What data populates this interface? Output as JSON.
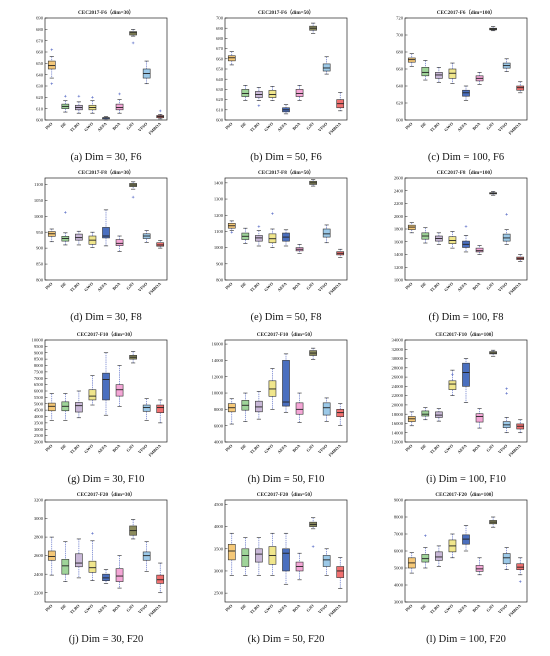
{
  "figure": {
    "series_labels": [
      "PSO",
      "DE",
      "TLBO",
      "GWO",
      "AEFA",
      "BOA",
      "GJO",
      "VFSO",
      "FMBOA"
    ],
    "series_colors": [
      "#f5c878",
      "#9fd49a",
      "#c9b8d8",
      "#f0e68c",
      "#4a6fbf",
      "#f4a6d6",
      "#8c8c5e",
      "#9cc9e8",
      "#f07070"
    ]
  },
  "chart_data": [
    {
      "type": "box",
      "title": "CEC2017-F6（dim=30）",
      "caption": "(a) Dim = 30, F6",
      "yticks": [
        "600",
        "610",
        "620",
        "630",
        "640",
        "650",
        "660",
        "670",
        "680",
        "690"
      ],
      "ylim": [
        600,
        690
      ],
      "boxes": [
        [
          637,
          645,
          648,
          652,
          656
        ],
        [
          607,
          610,
          612,
          614,
          617
        ],
        [
          606,
          609,
          611,
          613,
          616
        ],
        [
          606,
          609,
          611,
          613,
          617
        ],
        [
          600,
          601,
          602,
          602,
          603
        ],
        [
          606,
          609,
          611,
          614,
          618
        ],
        [
          674,
          675,
          677,
          678,
          680
        ],
        [
          632,
          637,
          641,
          645,
          652
        ],
        [
          601,
          602,
          603,
          604,
          605
        ]
      ],
      "outliers": [
        [
          662,
          632
        ],
        [
          621
        ],
        [
          621
        ],
        [
          620
        ],
        [],
        [
          623
        ],
        [
          668
        ],
        [],
        [
          608
        ]
      ]
    },
    {
      "type": "box",
      "title": "CEC2017-F6（dim=50）",
      "caption": "(b) Dim = 50, F6",
      "yticks": [
        "600",
        "610",
        "620",
        "630",
        "640",
        "650",
        "660",
        "670",
        "680",
        "690",
        "700"
      ],
      "ylim": [
        600,
        700
      ],
      "boxes": [
        [
          654,
          658,
          661,
          663,
          667
        ],
        [
          619,
          623,
          626,
          630,
          634
        ],
        [
          619,
          622,
          625,
          628,
          632
        ],
        [
          619,
          622,
          625,
          629,
          633
        ],
        [
          606,
          608,
          610,
          612,
          615
        ],
        [
          619,
          623,
          626,
          630,
          634
        ],
        [
          685,
          688,
          690,
          692,
          695
        ],
        [
          645,
          648,
          651,
          655,
          662
        ],
        [
          609,
          612,
          616,
          620,
          627
        ]
      ],
      "outliers": [
        [],
        [],
        [
          614
        ],
        [],
        [],
        [],
        [],
        [],
        []
      ]
    },
    {
      "type": "box",
      "title": "CEC2017-F6（dim=100）",
      "caption": "(c) Dim = 100, F6",
      "yticks": [
        "600",
        "620",
        "640",
        "660",
        "680",
        "700",
        "720"
      ],
      "ylim": [
        600,
        720
      ],
      "boxes": [
        [
          663,
          668,
          671,
          673,
          678
        ],
        [
          647,
          652,
          656,
          662,
          670
        ],
        [
          644,
          649,
          653,
          656,
          662
        ],
        [
          643,
          649,
          655,
          660,
          667
        ],
        [
          623,
          628,
          632,
          635,
          640
        ],
        [
          642,
          646,
          649,
          652,
          656
        ],
        [
          705,
          706,
          707,
          708,
          710
        ],
        [
          657,
          661,
          664,
          667,
          672
        ],
        [
          632,
          635,
          638,
          640,
          645
        ]
      ],
      "outliers": [
        [],
        [],
        [],
        [],
        [],
        [],
        [],
        [],
        []
      ]
    },
    {
      "type": "box",
      "title": "CEC2017-F8（dim=30）",
      "caption": "(d) Dim = 30, F8",
      "yticks": [
        "800",
        "850",
        "900",
        "950",
        "1000",
        "1050",
        "1100"
      ],
      "ylim": [
        800,
        1120
      ],
      "boxes": [
        [
          920,
          937,
          945,
          952,
          960
        ],
        [
          910,
          922,
          930,
          937,
          948
        ],
        [
          910,
          925,
          933,
          944,
          953
        ],
        [
          902,
          912,
          925,
          938,
          950
        ],
        [
          907,
          932,
          938,
          965,
          1020
        ],
        [
          890,
          908,
          915,
          927,
          938
        ],
        [
          1085,
          1093,
          1098,
          1103,
          1108
        ],
        [
          918,
          930,
          938,
          945,
          955
        ],
        [
          900,
          906,
          910,
          917,
          924
        ]
      ],
      "outliers": [
        [],
        [
          1012
        ],
        [],
        [],
        [],
        [],
        [
          1060
        ],
        [],
        []
      ]
    },
    {
      "type": "box",
      "title": "CEC2017-F8（dim=50）",
      "caption": "(e) Dim = 50, F8",
      "yticks": [
        "800",
        "900",
        "1000",
        "1100",
        "1200",
        "1300",
        "1400"
      ],
      "ylim": [
        800,
        1430
      ],
      "boxes": [
        [
          1105,
          1120,
          1135,
          1150,
          1165
        ],
        [
          1025,
          1050,
          1070,
          1090,
          1120
        ],
        [
          1010,
          1040,
          1060,
          1075,
          1105
        ],
        [
          1000,
          1030,
          1055,
          1085,
          1115
        ],
        [
          1010,
          1040,
          1065,
          1090,
          1110
        ],
        [
          965,
          980,
          990,
          1000,
          1020
        ],
        [
          1380,
          1390,
          1400,
          1410,
          1420
        ],
        [
          1030,
          1065,
          1085,
          1115,
          1140
        ],
        [
          940,
          955,
          965,
          975,
          990
        ]
      ],
      "outliers": [
        [
          1095
        ],
        [],
        [
          1130
        ],
        [
          1210
        ],
        [],
        [],
        [],
        [],
        []
      ]
    },
    {
      "type": "box",
      "title": "CEC2017-F8（dim=100）",
      "caption": "(f) Dim = 100, F8",
      "yticks": [
        "1000",
        "1200",
        "1400",
        "1600",
        "1800",
        "2000",
        "2200",
        "2400",
        "2600"
      ],
      "ylim": [
        1000,
        2600
      ],
      "boxes": [
        [
          1740,
          1790,
          1830,
          1860,
          1900
        ],
        [
          1580,
          1640,
          1690,
          1740,
          1820
        ],
        [
          1560,
          1610,
          1650,
          1690,
          1740
        ],
        [
          1500,
          1570,
          1620,
          1680,
          1760
        ],
        [
          1440,
          1510,
          1560,
          1610,
          1700
        ],
        [
          1400,
          1440,
          1460,
          1500,
          1540
        ],
        [
          2330,
          2350,
          2360,
          2370,
          2390
        ],
        [
          1560,
          1610,
          1660,
          1720,
          1790
        ],
        [
          1290,
          1320,
          1340,
          1360,
          1400
        ]
      ],
      "outliers": [
        [],
        [],
        [],
        [],
        [
          1840
        ],
        [],
        [],
        [
          2030
        ],
        []
      ]
    },
    {
      "type": "box",
      "title": "CEC2017-F10（dim=30）",
      "caption": "(g) Dim = 30, F10",
      "yticks": [
        "2000",
        "2500",
        "3000",
        "3500",
        "4000",
        "4500",
        "5000",
        "5500",
        "6000",
        "6500",
        "7000",
        "7500",
        "8000",
        "8500",
        "9000",
        "9500",
        "10000"
      ],
      "ylim": [
        2000,
        10000
      ],
      "boxes": [
        [
          3700,
          4450,
          4800,
          5050,
          5800
        ],
        [
          3700,
          4450,
          4800,
          5150,
          5800
        ],
        [
          3900,
          4350,
          4850,
          5100,
          6000
        ],
        [
          4900,
          5300,
          5600,
          6100,
          7200
        ],
        [
          4100,
          5300,
          6900,
          7400,
          9000
        ],
        [
          4800,
          5600,
          6100,
          6500,
          8000
        ],
        [
          8200,
          8500,
          8650,
          8800,
          9100
        ],
        [
          3700,
          4400,
          4700,
          4900,
          5400
        ],
        [
          3500,
          4300,
          4700,
          4900,
          5300
        ]
      ],
      "outliers": [
        [],
        [],
        [],
        [],
        [],
        [],
        [],
        [],
        []
      ]
    },
    {
      "type": "box",
      "title": "CEC2017-F10（dim=50）",
      "caption": "(h) Dim = 50, F10",
      "yticks": [
        "4000",
        "6000",
        "8000",
        "10000",
        "12000",
        "14000",
        "16000"
      ],
      "ylim": [
        4000,
        16500
      ],
      "boxes": [
        [
          6200,
          7700,
          8200,
          8700,
          9300
        ],
        [
          6500,
          7900,
          8500,
          9100,
          10000
        ],
        [
          6800,
          7700,
          8300,
          9000,
          10200
        ],
        [
          8000,
          9600,
          10500,
          11500,
          13000
        ],
        [
          7600,
          8400,
          8900,
          14000,
          14800
        ],
        [
          6400,
          7400,
          8000,
          8800,
          10000
        ],
        [
          14100,
          14600,
          14900,
          15200,
          15500
        ],
        [
          6500,
          7300,
          8200,
          8800,
          9400
        ],
        [
          6000,
          7100,
          7600,
          8000,
          8700
        ]
      ],
      "outliers": [
        [],
        [],
        [],
        [],
        [],
        [],
        [],
        [],
        []
      ]
    },
    {
      "type": "box",
      "title": "CEC2017-F10（dim=100）",
      "caption": "(i) Dim = 100, F10",
      "yticks": [
        "12000",
        "14000",
        "16000",
        "18000",
        "20000",
        "22000",
        "24000",
        "26000",
        "28000",
        "30000",
        "32000",
        "34000"
      ],
      "ylim": [
        12000,
        34000
      ],
      "boxes": [
        [
          15500,
          16400,
          17000,
          17500,
          18500
        ],
        [
          16800,
          17600,
          18000,
          18700,
          19400
        ],
        [
          16500,
          17300,
          17800,
          18500,
          19200
        ],
        [
          22000,
          23300,
          24500,
          25200,
          27500
        ],
        [
          20500,
          24000,
          27000,
          29000,
          30000
        ],
        [
          15000,
          16300,
          17500,
          18100,
          19200
        ],
        [
          30500,
          31000,
          31200,
          31500,
          31800
        ],
        [
          14000,
          15100,
          15700,
          16400,
          17300
        ],
        [
          14000,
          14800,
          15400,
          15900,
          16800
        ]
      ],
      "outliers": [
        [],
        [],
        [],
        [
          26500
        ],
        [],
        [],
        [],
        [
          23500,
          22500
        ],
        []
      ]
    },
    {
      "type": "box",
      "title": "CEC2017-F20（dim=30）",
      "caption": "(j) Dim = 30, F20",
      "yticks": [
        "2200",
        "2400",
        "2600",
        "2800",
        "3000",
        "3200"
      ],
      "ylim": [
        2100,
        3200
      ],
      "boxes": [
        [
          2390,
          2550,
          2590,
          2650,
          2800
        ],
        [
          2320,
          2400,
          2490,
          2560,
          2750
        ],
        [
          2360,
          2480,
          2520,
          2620,
          2780
        ],
        [
          2330,
          2420,
          2470,
          2540,
          2760
        ],
        [
          2300,
          2330,
          2360,
          2400,
          2450
        ],
        [
          2250,
          2320,
          2380,
          2460,
          2600
        ],
        [
          2780,
          2820,
          2870,
          2920,
          2990
        ],
        [
          2430,
          2550,
          2600,
          2640,
          2750
        ],
        [
          2200,
          2300,
          2340,
          2390,
          2520
        ]
      ],
      "outliers": [
        [],
        [],
        [],
        [
          2840
        ],
        [],
        [],
        [],
        [],
        []
      ]
    },
    {
      "type": "box",
      "title": "CEC2017-F20（dim=50）",
      "caption": "(k) Dim = 50, F20",
      "yticks": [
        "2500",
        "3000",
        "3500",
        "4000",
        "4500"
      ],
      "ylim": [
        2300,
        4600
      ],
      "boxes": [
        [
          2900,
          3250,
          3450,
          3600,
          3850
        ],
        [
          2900,
          3100,
          3350,
          3500,
          3750
        ],
        [
          2900,
          3200,
          3380,
          3500,
          3750
        ],
        [
          2900,
          3150,
          3350,
          3550,
          3850
        ],
        [
          2700,
          3000,
          3400,
          3500,
          3850
        ],
        [
          2800,
          3000,
          3100,
          3200,
          3400
        ],
        [
          3950,
          4000,
          4050,
          4100,
          4200
        ],
        [
          2900,
          3100,
          3250,
          3350,
          3500
        ],
        [
          2600,
          2850,
          3000,
          3100,
          3300
        ]
      ],
      "outliers": [
        [],
        [],
        [],
        [],
        [],
        [],
        [
          3550
        ],
        [],
        []
      ]
    },
    {
      "type": "box",
      "title": "CEC2017-F20（dim=100）",
      "caption": "(l) Dim = 100, F20",
      "yticks": [
        "3000",
        "4000",
        "5000",
        "6000",
        "7000",
        "8000",
        "9000"
      ],
      "ylim": [
        3000,
        9000
      ],
      "boxes": [
        [
          4700,
          5000,
          5300,
          5600,
          5900
        ],
        [
          5000,
          5350,
          5550,
          5800,
          6200
        ],
        [
          5100,
          5450,
          5650,
          5950,
          6300
        ],
        [
          5600,
          5950,
          6300,
          6650,
          7000
        ],
        [
          6000,
          6400,
          6700,
          6950,
          7500
        ],
        [
          4600,
          4800,
          4950,
          5150,
          5600
        ],
        [
          7400,
          7600,
          7700,
          7800,
          8000
        ],
        [
          4900,
          5250,
          5600,
          5850,
          6200
        ],
        [
          4600,
          4900,
          5050,
          5250,
          5600
        ]
      ],
      "outliers": [
        [],
        [
          6900
        ],
        [],
        [],
        [],
        [],
        [],
        [],
        [
          4200
        ]
      ]
    }
  ]
}
